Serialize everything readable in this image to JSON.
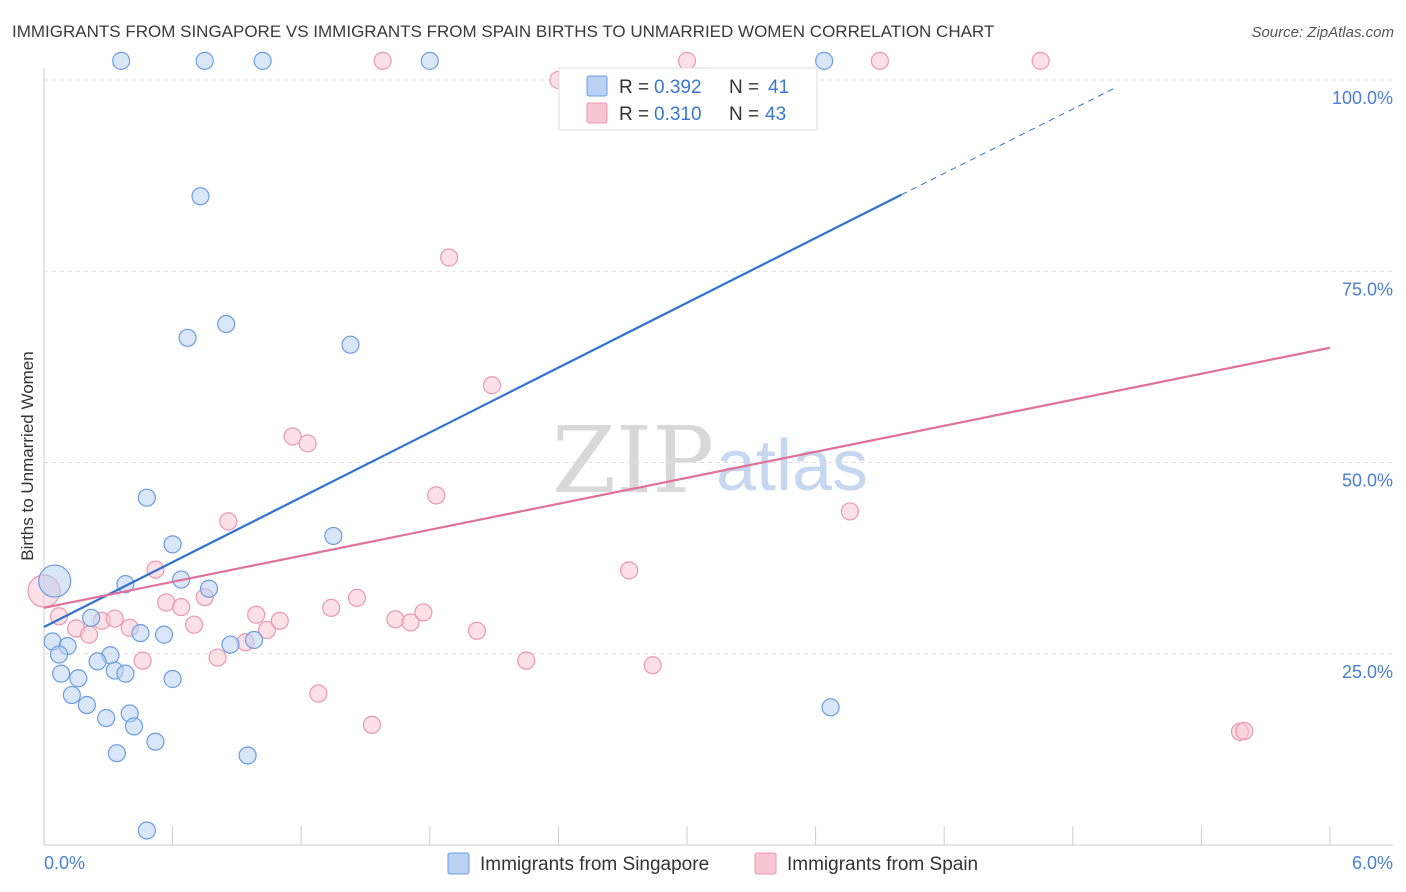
{
  "header": {
    "title": "IMMIGRANTS FROM SINGAPORE VS IMMIGRANTS FROM SPAIN BIRTHS TO UNMARRIED WOMEN CORRELATION CHART",
    "source": "Source: ZipAtlas.com"
  },
  "watermark": {
    "zip": "ZIP",
    "atlas": "atlas"
  },
  "colors": {
    "singapore_fill": "#b9d2f3",
    "singapore_stroke": "#6b9ce0",
    "singapore_line": "#2f72cf",
    "spain_fill": "#f7c6d5",
    "spain_stroke": "#eb97b2",
    "spain_line": "#e0719a",
    "axis_label": "#4a7fd0",
    "grid": "#dddddd"
  },
  "legend": {
    "rows": [
      {
        "r_label": "R =",
        "r_value": "0.392",
        "n_label": "N =",
        "n_value": "41"
      },
      {
        "r_label": "R =",
        "r_value": "0.310",
        "n_label": "N =",
        "n_value": "43"
      }
    ]
  },
  "chart_data": {
    "type": "scatter",
    "title": "IMMIGRANTS FROM SINGAPORE VS IMMIGRANTS FROM SPAIN BIRTHS TO UNMARRIED WOMEN CORRELATION CHART",
    "xlabel": "",
    "ylabel": "Births to Unmarried Women",
    "xlim": [
      0,
      6
    ],
    "ylim": [
      0,
      100
    ],
    "x_tick_labels": [
      "0.0%",
      "6.0%"
    ],
    "y_tick_labels": [
      "25.0%",
      "50.0%",
      "75.0%",
      "100.0%"
    ],
    "y_tick_values": [
      25,
      50,
      75,
      100
    ],
    "legend_position": "top-center",
    "series": [
      {
        "name": "Immigrants from Singapore",
        "r": 0.392,
        "n": 41,
        "trend": {
          "x0": 0.0,
          "y0": 28.5,
          "x1": 4.0,
          "y1": 85.0,
          "dashed_to_x": 5.0,
          "dashed_to_y": 99.0
        },
        "points": [
          [
            0.36,
            102.5
          ],
          [
            0.75,
            102.5
          ],
          [
            1.02,
            102.5
          ],
          [
            1.8,
            102.5
          ],
          [
            3.64,
            102.5
          ],
          [
            0.73,
            84.8
          ],
          [
            0.67,
            66.3
          ],
          [
            0.85,
            68.1
          ],
          [
            1.43,
            65.4
          ],
          [
            0.05,
            34.5
          ],
          [
            0.48,
            45.4
          ],
          [
            0.6,
            39.3
          ],
          [
            0.38,
            34.1
          ],
          [
            0.64,
            34.7
          ],
          [
            0.77,
            33.5
          ],
          [
            1.35,
            40.4
          ],
          [
            0.04,
            26.6
          ],
          [
            0.22,
            29.7
          ],
          [
            0.11,
            26.0
          ],
          [
            0.07,
            24.9
          ],
          [
            0.31,
            24.8
          ],
          [
            0.45,
            27.7
          ],
          [
            0.56,
            27.5
          ],
          [
            0.87,
            26.2
          ],
          [
            0.98,
            26.8
          ],
          [
            0.08,
            22.4
          ],
          [
            0.16,
            21.8
          ],
          [
            0.25,
            24.0
          ],
          [
            0.33,
            22.8
          ],
          [
            0.38,
            22.4
          ],
          [
            0.6,
            21.7
          ],
          [
            0.13,
            19.6
          ],
          [
            0.2,
            18.3
          ],
          [
            0.29,
            16.6
          ],
          [
            0.4,
            17.2
          ],
          [
            0.42,
            15.5
          ],
          [
            0.52,
            13.5
          ],
          [
            0.34,
            12.0
          ],
          [
            0.95,
            11.7
          ],
          [
            3.67,
            18.0
          ],
          [
            0.48,
            1.9
          ]
        ]
      },
      {
        "name": "Immigrants from Spain",
        "r": 0.31,
        "n": 43,
        "trend": {
          "x0": 0.0,
          "y0": 31.0,
          "x1": 6.0,
          "y1": 65.0
        },
        "points": [
          [
            1.58,
            102.5
          ],
          [
            3.0,
            102.5
          ],
          [
            3.9,
            102.5
          ],
          [
            4.65,
            102.5
          ],
          [
            2.4,
            100.0
          ],
          [
            1.89,
            76.8
          ],
          [
            2.09,
            60.1
          ],
          [
            1.16,
            53.4
          ],
          [
            1.23,
            52.5
          ],
          [
            1.83,
            45.7
          ],
          [
            0.86,
            42.3
          ],
          [
            3.76,
            43.6
          ],
          [
            0.52,
            36.0
          ],
          [
            2.73,
            35.9
          ],
          [
            0.0,
            33.2
          ],
          [
            0.07,
            29.9
          ],
          [
            0.15,
            28.3
          ],
          [
            0.21,
            27.5
          ],
          [
            0.27,
            29.3
          ],
          [
            0.33,
            29.6
          ],
          [
            0.4,
            28.4
          ],
          [
            0.57,
            31.7
          ],
          [
            0.64,
            31.1
          ],
          [
            0.7,
            28.8
          ],
          [
            0.75,
            32.4
          ],
          [
            0.99,
            30.1
          ],
          [
            1.04,
            28.1
          ],
          [
            1.1,
            29.3
          ],
          [
            1.34,
            31.0
          ],
          [
            1.46,
            32.3
          ],
          [
            1.64,
            29.5
          ],
          [
            1.71,
            29.1
          ],
          [
            1.77,
            30.4
          ],
          [
            2.02,
            28.0
          ],
          [
            0.46,
            24.1
          ],
          [
            0.81,
            24.5
          ],
          [
            0.94,
            26.5
          ],
          [
            2.25,
            24.1
          ],
          [
            2.84,
            23.5
          ],
          [
            1.28,
            19.8
          ],
          [
            1.53,
            15.7
          ],
          [
            5.58,
            14.8
          ],
          [
            5.6,
            14.9
          ]
        ]
      }
    ]
  }
}
